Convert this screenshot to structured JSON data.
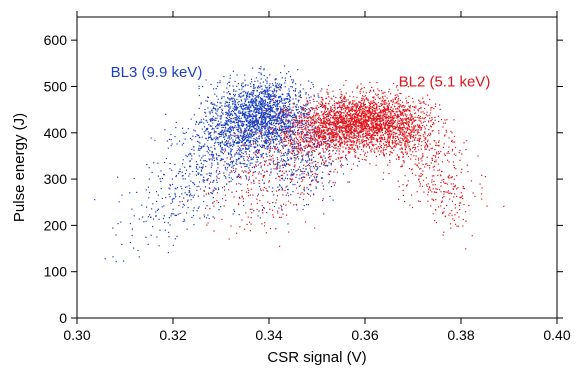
{
  "chart_data": {
    "type": "scatter",
    "title": "",
    "xlabel": "CSR signal (V)",
    "ylabel": "Pulse energy (J)",
    "xlim": [
      0.3,
      0.4
    ],
    "ylim": [
      0,
      650
    ],
    "x_ticks": [
      0.3,
      0.32,
      0.34,
      0.36,
      0.38,
      0.4
    ],
    "x_tick_labels": [
      "0.30",
      "0.32",
      "0.34",
      "0.36",
      "0.38",
      "0.40"
    ],
    "y_ticks": [
      0,
      100,
      200,
      300,
      400,
      500,
      600
    ],
    "y_tick_labels": [
      "0",
      "100",
      "200",
      "300",
      "400",
      "500",
      "600"
    ],
    "grid": false,
    "series": [
      {
        "name": "BL3 (9.9 keV)",
        "color": "#1a3fc4",
        "clusters": [
          {
            "cx": 0.339,
            "cy": 440,
            "sx": 0.005,
            "sy": 38,
            "n": 1700
          },
          {
            "cx": 0.332,
            "cy": 380,
            "sx": 0.005,
            "sy": 45,
            "n": 650
          },
          {
            "cx": 0.325,
            "cy": 300,
            "sx": 0.005,
            "sy": 45,
            "n": 200
          },
          {
            "cx": 0.318,
            "cy": 235,
            "sx": 0.0045,
            "sy": 35,
            "n": 90
          },
          {
            "cx": 0.347,
            "cy": 360,
            "sx": 0.0045,
            "sy": 45,
            "n": 300
          },
          {
            "cx": 0.345,
            "cy": 290,
            "sx": 0.0035,
            "sy": 40,
            "n": 90
          },
          {
            "cx": 0.31,
            "cy": 160,
            "sx": 0.004,
            "sy": 25,
            "n": 15
          }
        ]
      },
      {
        "name": "BL2 (5.1 keV)",
        "color": "#e3141b",
        "clusters": [
          {
            "cx": 0.36,
            "cy": 425,
            "sx": 0.006,
            "sy": 28,
            "n": 2100
          },
          {
            "cx": 0.351,
            "cy": 395,
            "sx": 0.005,
            "sy": 30,
            "n": 600
          },
          {
            "cx": 0.368,
            "cy": 395,
            "sx": 0.0045,
            "sy": 35,
            "n": 350
          },
          {
            "cx": 0.374,
            "cy": 320,
            "sx": 0.004,
            "sy": 45,
            "n": 200
          },
          {
            "cx": 0.378,
            "cy": 240,
            "sx": 0.003,
            "sy": 35,
            "n": 80
          },
          {
            "cx": 0.342,
            "cy": 320,
            "sx": 0.006,
            "sy": 50,
            "n": 250
          },
          {
            "cx": 0.335,
            "cy": 255,
            "sx": 0.006,
            "sy": 40,
            "n": 90
          }
        ]
      }
    ],
    "annotations": [
      {
        "text": "BL3 (9.9 keV)",
        "color": "#1a3fc4",
        "x": 0.307,
        "y": 520
      },
      {
        "text": "BL2 (5.1 keV)",
        "color": "#e3141b",
        "x": 0.367,
        "y": 500
      }
    ]
  }
}
